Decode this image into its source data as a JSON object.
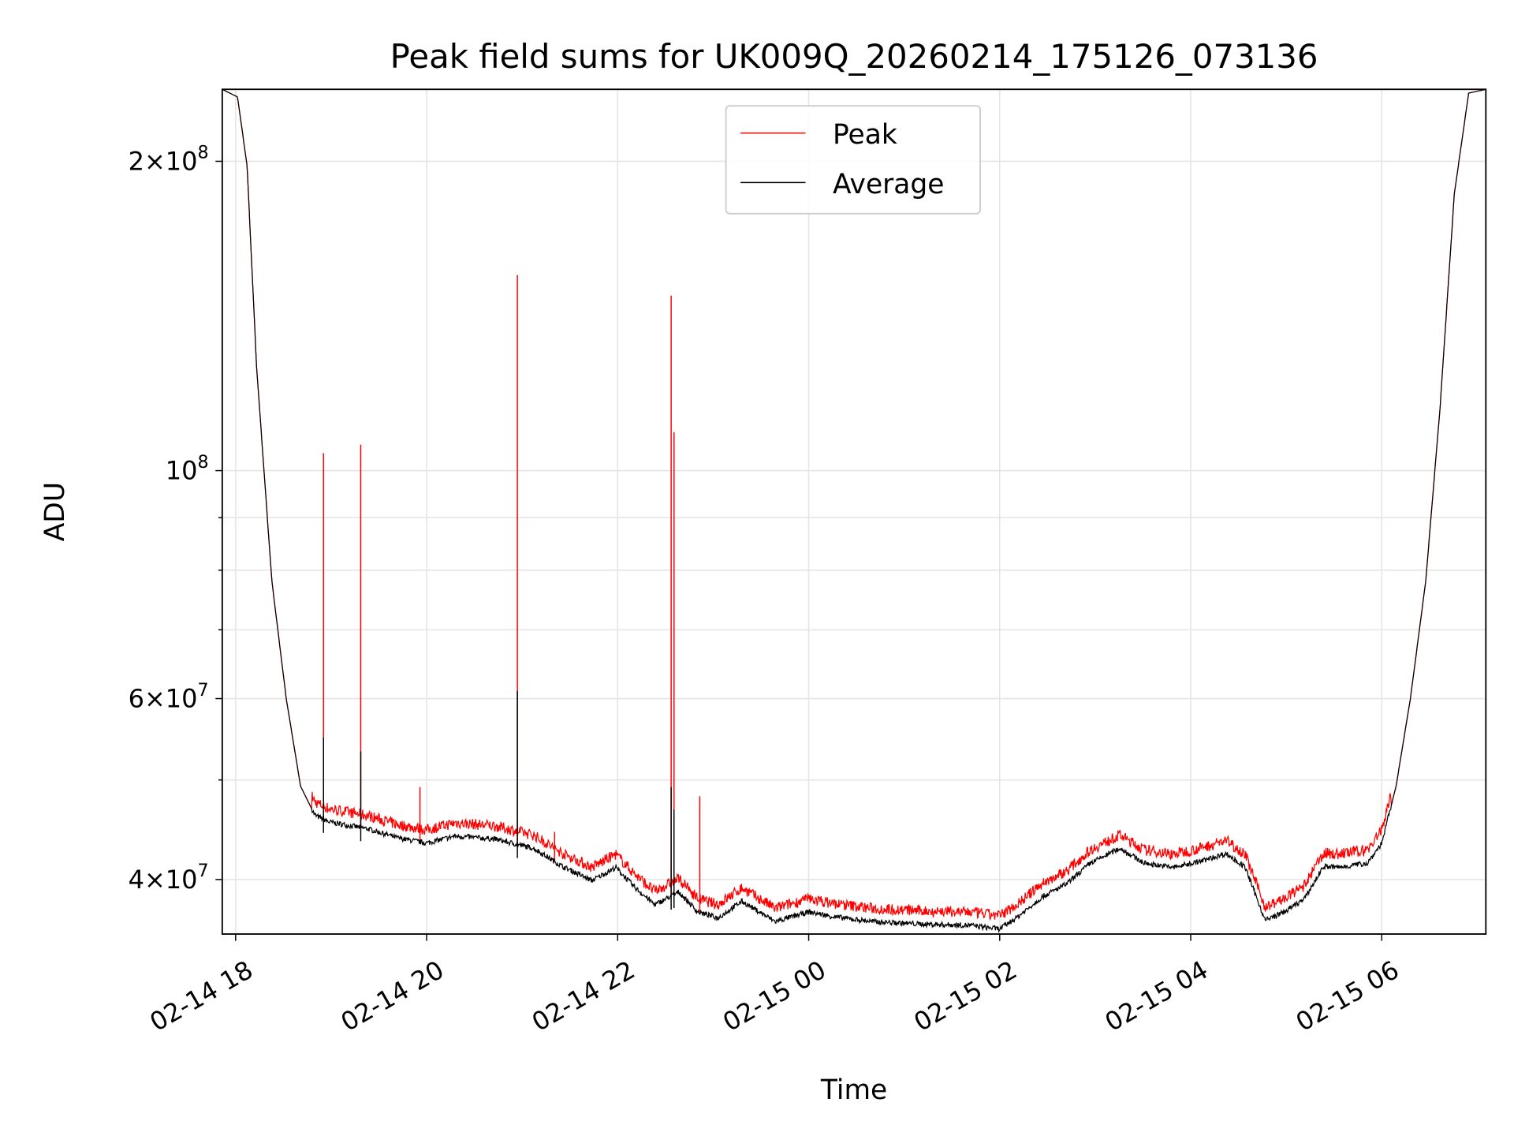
{
  "chart_data": {
    "type": "line",
    "title": "Peak field sums for UK009Q_20260214_175126_073136",
    "xlabel": "Time",
    "ylabel": "ADU",
    "x_units": "hours since 02-14 00:00",
    "xlim": [
      17.86,
      31.09
    ],
    "ylim": [
      35400000,
      235000000
    ],
    "yscale": "log",
    "grid": true,
    "legend_position": "top-center",
    "x_ticks": [
      {
        "value": 18,
        "label": "02-14 18"
      },
      {
        "value": 20,
        "label": "02-14 20"
      },
      {
        "value": 22,
        "label": "02-14 22"
      },
      {
        "value": 24,
        "label": "02-15 00"
      },
      {
        "value": 26,
        "label": "02-15 02"
      },
      {
        "value": 28,
        "label": "02-15 04"
      },
      {
        "value": 30,
        "label": "02-15 06"
      }
    ],
    "y_ticks": [
      {
        "value": 40000000,
        "mant": "4",
        "exp": "7"
      },
      {
        "value": 60000000,
        "mant": "6",
        "exp": "7"
      },
      {
        "value": 100000000,
        "mant": "",
        "exp": "8"
      },
      {
        "value": 200000000,
        "mant": "2",
        "exp": "8"
      }
    ],
    "y_minor_ticks": [
      50000000,
      70000000,
      80000000,
      90000000
    ],
    "series": [
      {
        "name": "Peak",
        "color": "#ff0000",
        "ratio_to_average": 1.025,
        "spikes": [
          [
            18.92,
            104000000
          ],
          [
            19.31,
            106000000
          ],
          [
            19.93,
            49200000
          ],
          [
            20.95,
            155000000
          ],
          [
            21.34,
            44500000
          ],
          [
            22.56,
            148000000
          ],
          [
            22.59,
            109000000
          ],
          [
            22.86,
            48200000
          ]
        ]
      },
      {
        "name": "Average",
        "color": "#000000",
        "spikes": [
          [
            18.92,
            55000000
          ],
          [
            19.31,
            53300000
          ],
          [
            20.95,
            61000000
          ],
          [
            22.56,
            49200000
          ],
          [
            22.59,
            46800000
          ]
        ],
        "x": [
          17.86,
          18.02,
          18.12,
          18.22,
          18.38,
          18.53,
          18.68,
          18.83,
          18.98,
          19.39,
          19.7,
          20.0,
          20.3,
          20.71,
          21.12,
          21.42,
          21.73,
          21.98,
          22.18,
          22.39,
          22.64,
          22.84,
          23.05,
          23.3,
          23.65,
          24.0,
          24.26,
          24.67,
          25.18,
          25.69,
          26.0,
          26.19,
          26.45,
          26.7,
          26.95,
          27.26,
          27.51,
          27.82,
          28.12,
          28.37,
          28.57,
          28.78,
          28.98,
          29.19,
          29.39,
          29.54,
          29.85,
          30.0,
          30.15,
          30.3,
          30.46,
          30.61,
          30.76,
          30.91,
          31.09
        ],
        "y": [
          235000000,
          231000000,
          198000000,
          126000000,
          78000000,
          60000000,
          49300000,
          46200000,
          45500000,
          44800000,
          43900000,
          43400000,
          44100000,
          43800000,
          42900000,
          41200000,
          39900000,
          41100000,
          39300000,
          37800000,
          38900000,
          37200000,
          36700000,
          38100000,
          36400000,
          37200000,
          36800000,
          36400000,
          36200000,
          36100000,
          35800000,
          36800000,
          38500000,
          39600000,
          41500000,
          42900000,
          41500000,
          41100000,
          41700000,
          42400000,
          41100000,
          36500000,
          37200000,
          38300000,
          41200000,
          41100000,
          41500000,
          43400000,
          49300000,
          60000000,
          78000000,
          115000000,
          186000000,
          233000000,
          235000000
        ]
      }
    ]
  }
}
